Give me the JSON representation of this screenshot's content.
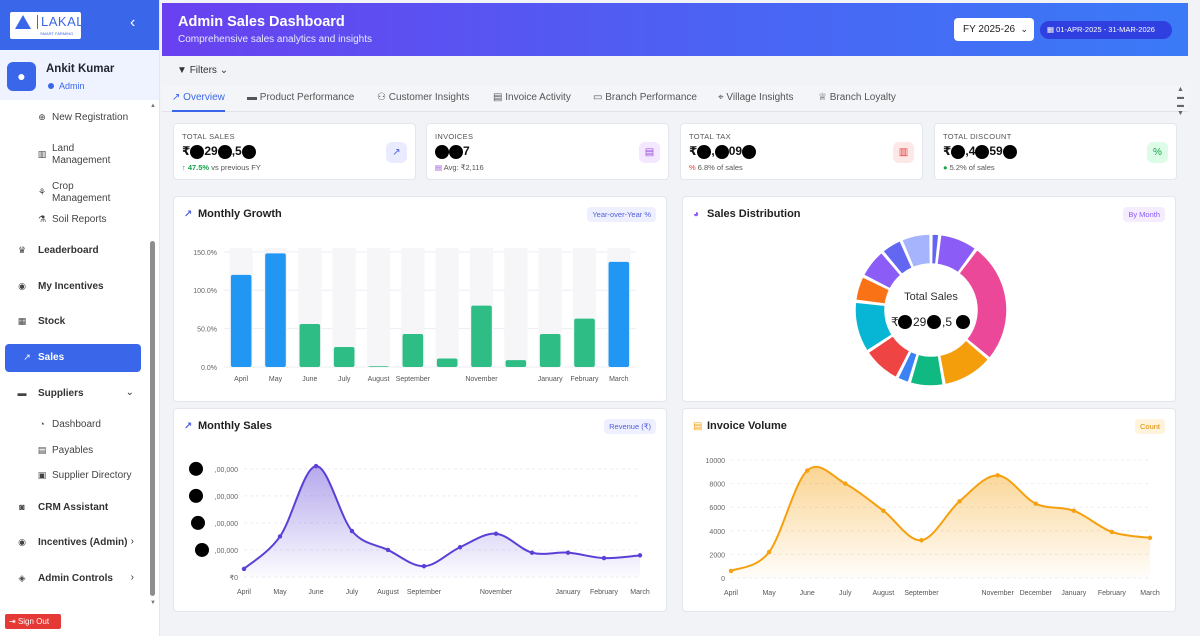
{
  "sidebar": {
    "logo_text": "LAKAL",
    "logo_tagline": "SMART FARMING",
    "collapse_icon": "chevron-left-icon",
    "user": {
      "name": "Ankit Kumar",
      "role": "Admin"
    },
    "items": [
      {
        "label": "New Registration",
        "icon": "user-plus-icon",
        "sub": true
      },
      {
        "label": "Land Management",
        "icon": "land-icon",
        "sub": true
      },
      {
        "label": "Crop Management",
        "icon": "sprout-icon",
        "sub": true
      },
      {
        "label": "Soil Reports",
        "icon": "flask-icon",
        "sub": true
      },
      {
        "label": "Leaderboard",
        "icon": "trophy-icon"
      },
      {
        "label": "My Incentives",
        "icon": "coins-icon"
      },
      {
        "label": "Stock",
        "icon": "boxes-icon"
      },
      {
        "label": "Sales",
        "icon": "chart-line-icon",
        "active": true
      },
      {
        "label": "Suppliers",
        "icon": "truck-icon",
        "chevron": "⌄"
      },
      {
        "label": "Dashboard",
        "icon": "gauge-icon",
        "sub": true
      },
      {
        "label": "Payables",
        "icon": "file-icon",
        "sub": true
      },
      {
        "label": "Supplier Directory",
        "icon": "book-icon",
        "sub": true
      },
      {
        "label": "CRM Assistant",
        "icon": "robot-icon"
      },
      {
        "label": "Incentives (Admin)",
        "icon": "coins-icon",
        "chevron": "›"
      },
      {
        "label": "Admin Controls",
        "icon": "shield-icon",
        "chevron": "›"
      }
    ],
    "sign_out": "Sign Out"
  },
  "header": {
    "title": "Admin Sales Dashboard",
    "subtitle": "Comprehensive sales analytics and insights",
    "fy_select": "FY 2025-26",
    "date_range": "01-APR-2025 - 31-MAR-2026"
  },
  "filters_label": "Filters",
  "tabs": [
    {
      "label": "Overview",
      "icon": "chart-line-icon",
      "active": true
    },
    {
      "label": "Product Performance",
      "icon": "box-icon"
    },
    {
      "label": "Customer Insights",
      "icon": "users-icon"
    },
    {
      "label": "Invoice Activity",
      "icon": "document-icon"
    },
    {
      "label": "Branch Performance",
      "icon": "building-icon"
    },
    {
      "label": "Village Insights",
      "icon": "map-pin-icon"
    },
    {
      "label": "Branch Loyalty",
      "icon": "award-icon"
    }
  ],
  "stats": [
    {
      "label": "TOTAL SALES",
      "value_parts": [
        "₹",
        "29",
        ",5",
        ""
      ],
      "foot_strong": "↑ 47.5%",
      "foot": " vs previous FY",
      "icon": "chart-line-icon",
      "color": "#4f5fd9",
      "bg": "#e9ecff"
    },
    {
      "label": "INVOICES",
      "value_parts": [
        "",
        "",
        "7"
      ],
      "foot": "Avg: ₹2,116",
      "icon": "document-icon",
      "color": "#9b4dd6",
      "bg": "#f3e8ff"
    },
    {
      "label": "TOTAL TAX",
      "value_parts": [
        "₹",
        ",",
        "09",
        ""
      ],
      "foot_strong": "%",
      "foot": " 6.8% of sales",
      "icon": "receipt-icon",
      "color": "#e53935",
      "bg": "#fde7e7"
    },
    {
      "label": "TOTAL DISCOUNT",
      "value_parts": [
        "₹",
        ",4",
        "59",
        ""
      ],
      "foot_strong": "●",
      "foot": " 5.2% of sales",
      "icon": "percent-icon",
      "color": "#16a34a",
      "bg": "#dcfce7"
    }
  ],
  "cards": {
    "growth": {
      "title": "Monthly Growth",
      "badge": "Year-over-Year %"
    },
    "distribution": {
      "title": "Sales Distribution",
      "badge": "By Month",
      "center_label": "Total Sales",
      "center_value_parts": [
        "₹",
        "29",
        ",5",
        ""
      ]
    },
    "monthly_sales": {
      "title": "Monthly Sales",
      "badge": "Revenue (₹)"
    },
    "invoice_volume": {
      "title": "Invoice Volume",
      "badge": "Count"
    }
  },
  "chart_data": [
    {
      "type": "bar",
      "title": "Monthly Growth",
      "categories": [
        "April",
        "May",
        "June",
        "July",
        "August",
        "September",
        "October",
        "November",
        "December",
        "January",
        "February",
        "March"
      ],
      "x_tick_labels": [
        "April",
        "May",
        "June",
        "July",
        "August",
        "September",
        "",
        "November",
        "",
        "January",
        "February",
        "March"
      ],
      "values": [
        120,
        148,
        56,
        26,
        1,
        43,
        11,
        80,
        9,
        43,
        63,
        137
      ],
      "colors": {
        "positive_high": "#2196f3",
        "normal": "#2ebd85",
        "highlight_categories": [
          "April",
          "May",
          "March"
        ]
      },
      "y_ticks": [
        "0.0%",
        "50.0%",
        "100.0%",
        "150.0%"
      ],
      "ylim": [
        0,
        155
      ],
      "grid": true
    },
    {
      "type": "pie",
      "title": "Sales Distribution",
      "variant": "donut",
      "slices": [
        {
          "label": "slice-1",
          "value": 2,
          "color": "#6366f1"
        },
        {
          "label": "slice-2",
          "value": 9,
          "color": "#8b5cf6"
        },
        {
          "label": "slice-3",
          "value": 28,
          "color": "#ec4899"
        },
        {
          "label": "slice-4",
          "value": 12,
          "color": "#f59e0b"
        },
        {
          "label": "slice-5",
          "value": 8,
          "color": "#10b981"
        },
        {
          "label": "slice-6",
          "value": 3,
          "color": "#3b82f6"
        },
        {
          "label": "slice-7",
          "value": 9,
          "color": "#ef4444"
        },
        {
          "label": "slice-8",
          "value": 12,
          "color": "#06b6d4"
        },
        {
          "label": "slice-9",
          "value": 6,
          "color": "#f97316"
        },
        {
          "label": "slice-10",
          "value": 7,
          "color": "#8b5cf6"
        },
        {
          "label": "slice-11",
          "value": 5,
          "color": "#6366f1"
        },
        {
          "label": "slice-12",
          "value": 7,
          "color": "#a5b4fc"
        }
      ]
    },
    {
      "type": "area",
      "title": "Monthly Sales",
      "x": [
        "April",
        "May",
        "June",
        "July",
        "August",
        "September",
        "October",
        "November",
        "December",
        "January",
        "February",
        "March"
      ],
      "x_tick_labels": [
        "April",
        "May",
        "June",
        "July",
        "August",
        "September",
        "",
        "November",
        "",
        "January",
        "February",
        "March"
      ],
      "values": [
        0.3,
        1.5,
        4.1,
        1.7,
        1.0,
        0.4,
        1.1,
        1.6,
        0.9,
        0.9,
        0.7,
        0.8
      ],
      "y_tick_labels": [
        "₹0",
        ",00,000",
        ",00,000",
        ",00,000",
        ",00,000"
      ],
      "ylim": [
        0,
        4.4
      ],
      "color": "#5b3fd6"
    },
    {
      "type": "area",
      "title": "Invoice Volume",
      "x": [
        "April",
        "May",
        "June",
        "July",
        "August",
        "September",
        "October",
        "November",
        "December",
        "January",
        "February",
        "March"
      ],
      "x_tick_labels": [
        "April",
        "May",
        "June",
        "July",
        "August",
        "September",
        "",
        "November",
        "December",
        "January",
        "February",
        "March"
      ],
      "values": [
        600,
        2200,
        9100,
        8000,
        5700,
        3200,
        6500,
        8700,
        6300,
        5700,
        3900,
        3400
      ],
      "y_ticks": [
        0,
        2000,
        4000,
        6000,
        8000,
        10000
      ],
      "ylim": [
        0,
        10000
      ],
      "color": "#f5a00f"
    }
  ]
}
